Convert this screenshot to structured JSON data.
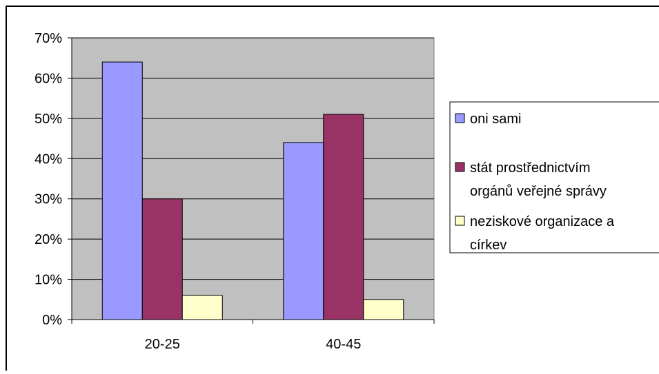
{
  "chart_data": {
    "type": "bar",
    "categories": [
      "20-25",
      "40-45"
    ],
    "series": [
      {
        "name": "oni sami",
        "values": [
          64,
          44
        ],
        "color": "#9999ff"
      },
      {
        "name": "stát prostřednictvím orgánů veřejné správy",
        "values": [
          30,
          51
        ],
        "color": "#993366"
      },
      {
        "name": "neziskové organizace a církev",
        "values": [
          6,
          5
        ],
        "color": "#ffffcc"
      }
    ],
    "legend_lines": [
      [
        "oni sami"
      ],
      [
        "stát prostřednictvím",
        "orgánů veřejné správy"
      ],
      [
        "neziskové organizace a",
        "církev"
      ]
    ],
    "yticks": [
      "0%",
      "10%",
      "20%",
      "30%",
      "40%",
      "50%",
      "60%",
      "70%"
    ],
    "ylim": [
      0,
      70
    ],
    "y_format": "percent",
    "grid": true,
    "legend_position": "right",
    "plot_background": "#c0c0c0",
    "title": "",
    "xlabel": "",
    "ylabel": ""
  }
}
